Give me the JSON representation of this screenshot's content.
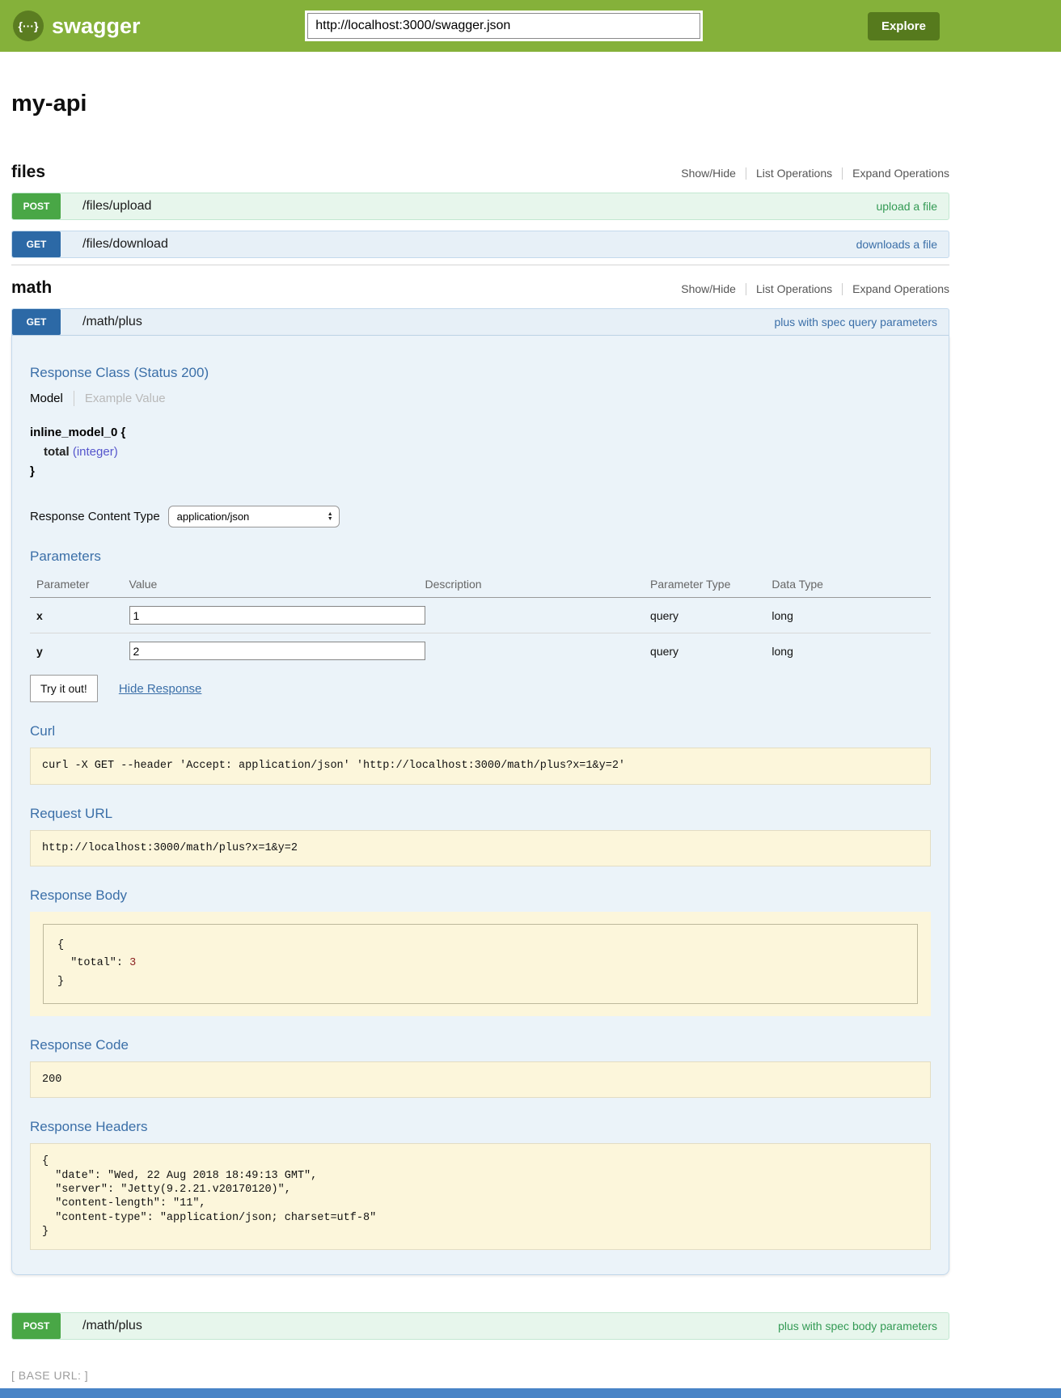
{
  "header": {
    "logo_glyph": "{···}",
    "logo_text": "swagger",
    "url_value": "http://localhost:3000/swagger.json",
    "explore_label": "Explore"
  },
  "api": {
    "title": "my-api"
  },
  "sections": {
    "files": {
      "title": "files",
      "controls": {
        "show_hide": "Show/Hide",
        "list_ops": "List Operations",
        "expand_ops": "Expand Operations"
      },
      "operations": [
        {
          "method": "POST",
          "path": "/files/upload",
          "summary": "upload a file"
        },
        {
          "method": "GET",
          "path": "/files/download",
          "summary": "downloads a file"
        }
      ]
    },
    "math": {
      "title": "math",
      "controls": {
        "show_hide": "Show/Hide",
        "list_ops": "List Operations",
        "expand_ops": "Expand Operations"
      },
      "get_operation": {
        "method": "GET",
        "path": "/math/plus",
        "summary": "plus with spec query parameters",
        "response_class_heading": "Response Class (Status 200)",
        "tabs": {
          "model": "Model",
          "example_value": "Example Value"
        },
        "model": {
          "name": "inline_model_0 {",
          "property_name": "total",
          "property_type": "(integer)",
          "closing_brace": "}"
        },
        "response_content_type": {
          "label": "Response Content Type",
          "selected": "application/json"
        },
        "parameters": {
          "heading": "Parameters",
          "columns": [
            "Parameter",
            "Value",
            "Description",
            "Parameter Type",
            "Data Type"
          ],
          "rows": [
            {
              "name": "x",
              "value": "1",
              "description": "",
              "parameter_type": "query",
              "data_type": "long"
            },
            {
              "name": "y",
              "value": "2",
              "description": "",
              "parameter_type": "query",
              "data_type": "long"
            }
          ]
        },
        "try_it_out_label": "Try it out!",
        "hide_response_label": "Hide Response",
        "curl": {
          "heading": "Curl",
          "command": "curl -X GET --header 'Accept: application/json' 'http://localhost:3000/math/plus?x=1&y=2'"
        },
        "request_url": {
          "heading": "Request URL",
          "value": "http://localhost:3000/math/plus?x=1&y=2"
        },
        "response_body": {
          "heading": "Response Body",
          "json_before": "{\n  \"total\": ",
          "json_number": "3",
          "json_after": "\n}"
        },
        "response_code": {
          "heading": "Response Code",
          "value": "200"
        },
        "response_headers": {
          "heading": "Response Headers",
          "json": "{\n  \"date\": \"Wed, 22 Aug 2018 18:49:13 GMT\",\n  \"server\": \"Jetty(9.2.21.v20170120)\",\n  \"content-length\": \"11\",\n  \"content-type\": \"application/json; charset=utf-8\"\n}"
        }
      },
      "post_operation": {
        "method": "POST",
        "path": "/math/plus",
        "summary": "plus with spec body parameters"
      }
    }
  },
  "footer": {
    "base_url": "[ BASE URL: ]"
  },
  "colors": {
    "topbar_green": "#85b13a",
    "logo_green": "#5b7d21",
    "explore_green": "#567a1d",
    "post_green": "#49a746",
    "get_blue": "#2c69a6",
    "post_row_bg": "#e7f6ec",
    "get_row_bg": "#e7f0f7",
    "panel_bg": "#ebf3f9",
    "heading_blue": "#3b6fa8",
    "summary_green": "#339a54",
    "code_box_beige": "#fcf6db",
    "prop_type_purple": "#5555cc",
    "json_number_red": "#8a1f1f",
    "footer_bar_blue": "#4884c6"
  }
}
